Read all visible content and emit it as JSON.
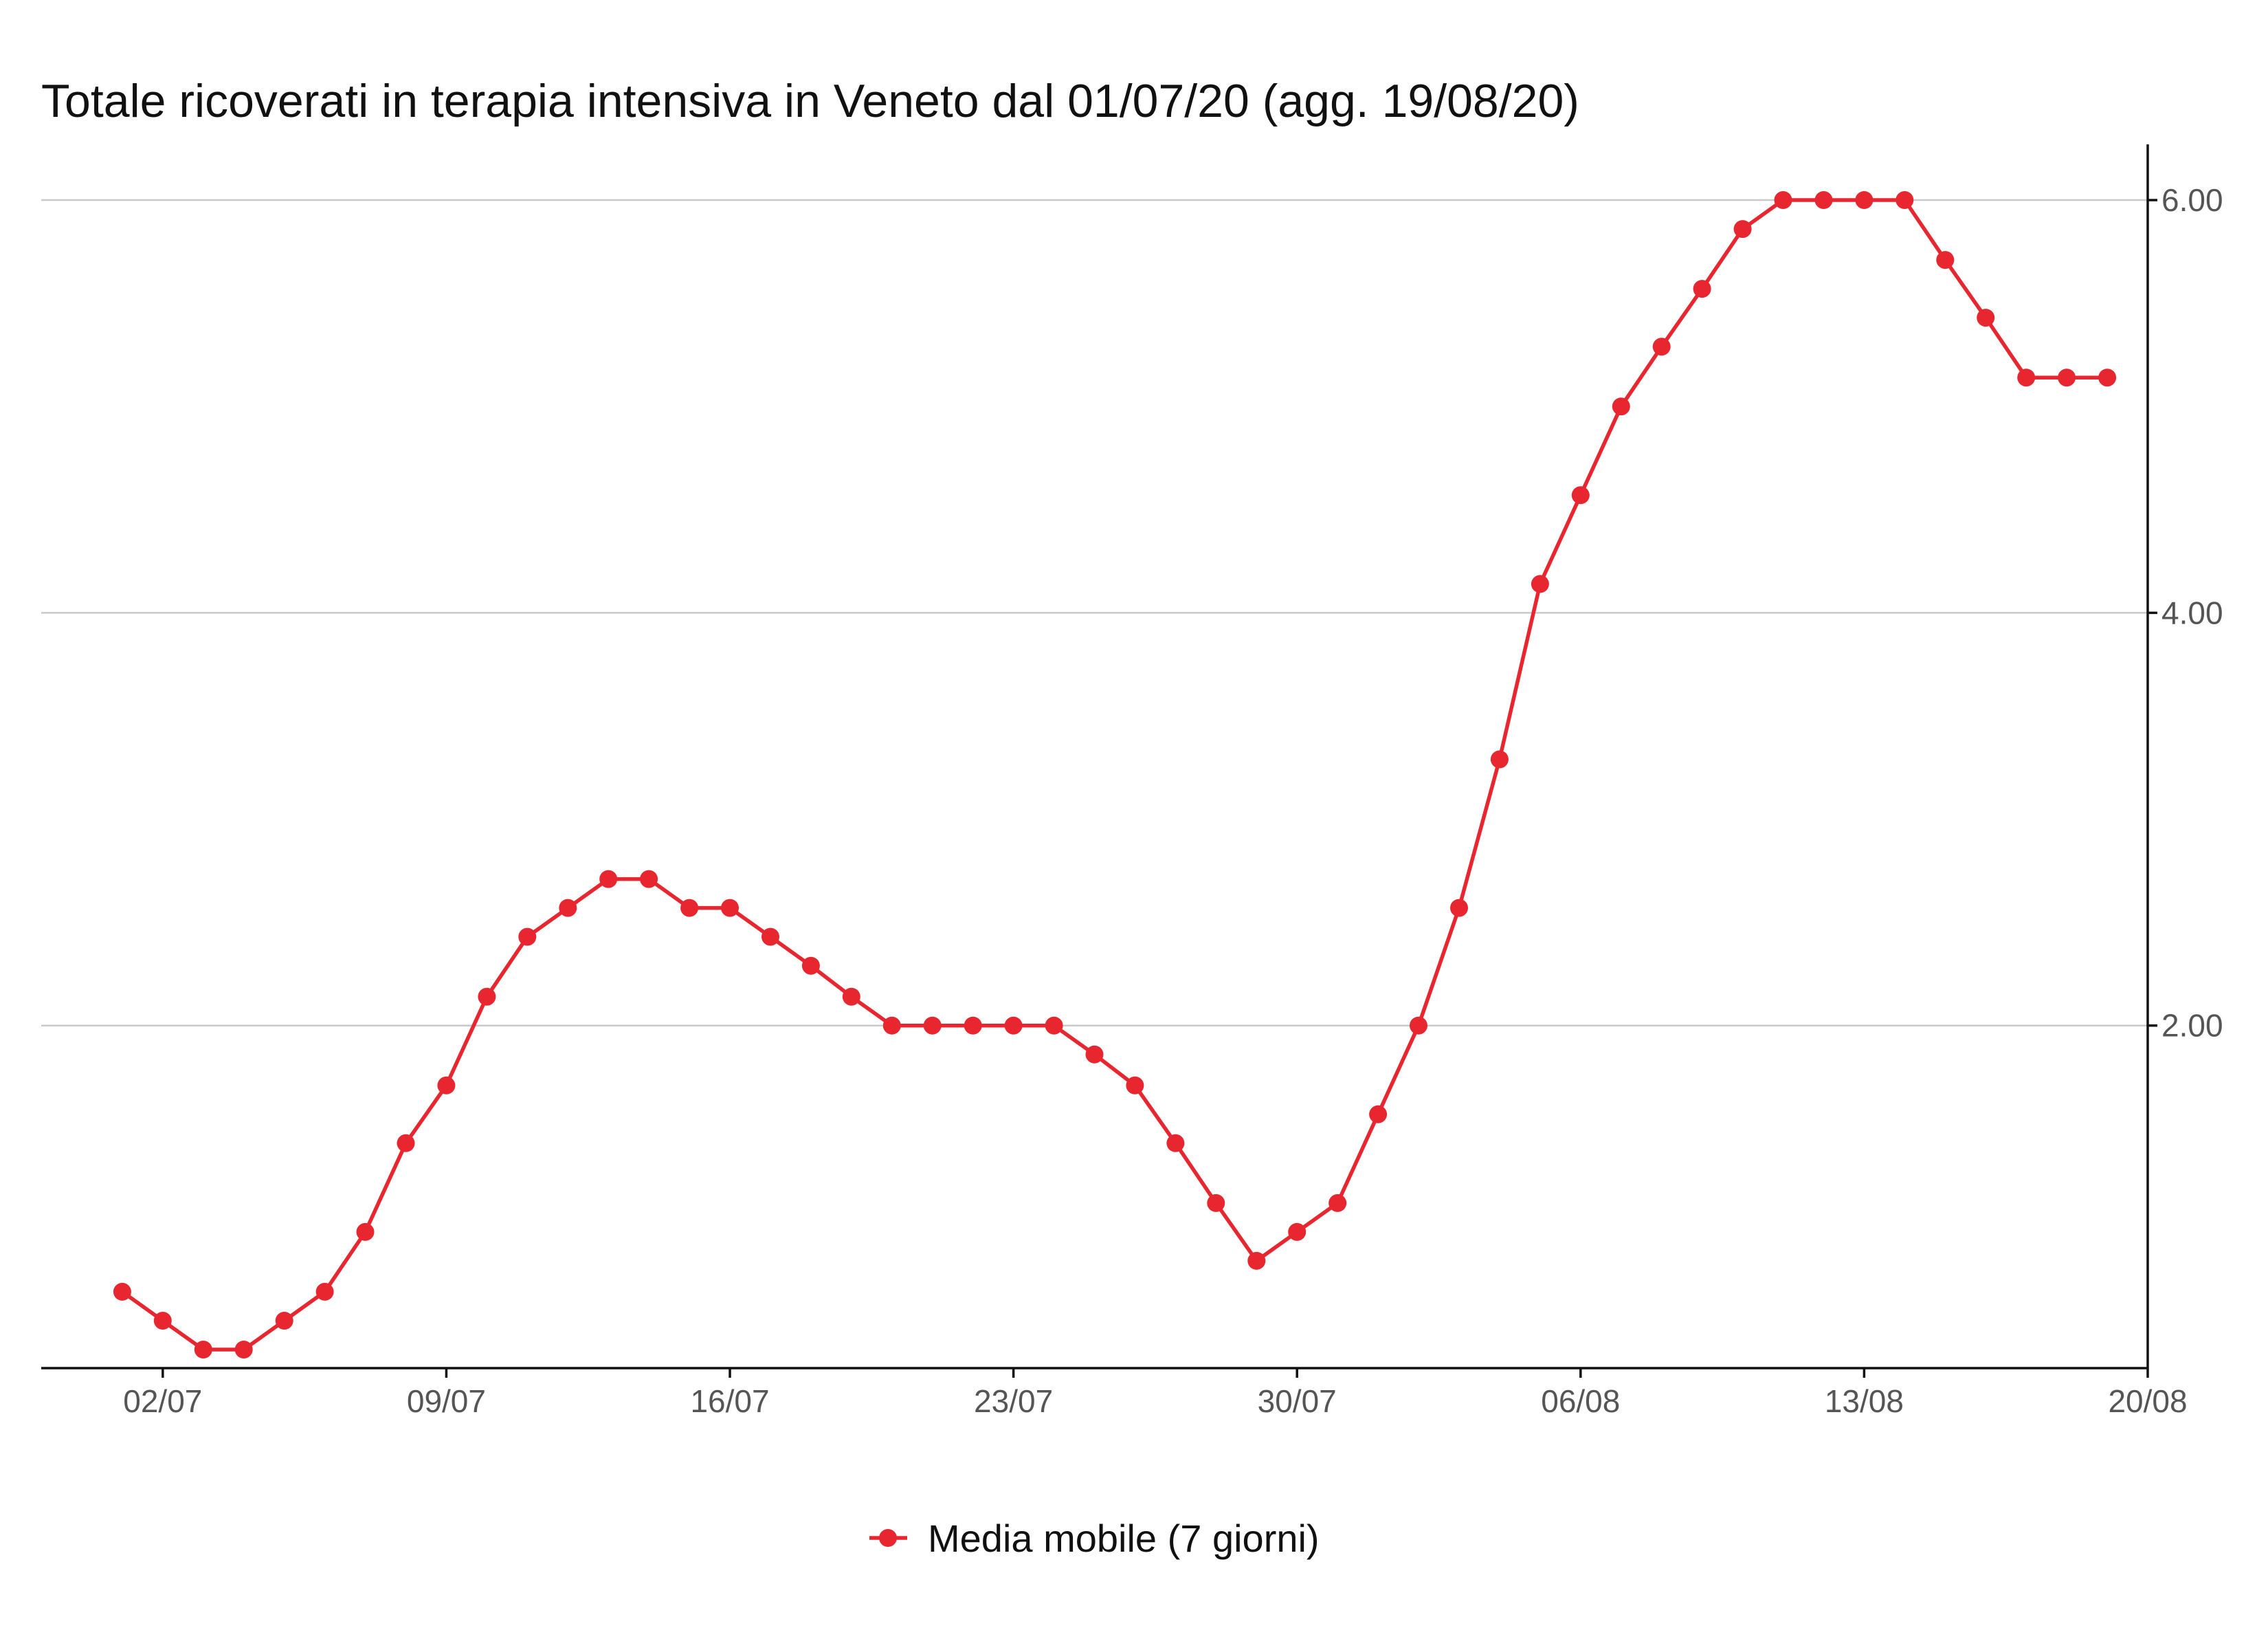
{
  "chart_data": {
    "type": "line",
    "title": "Totale ricoverati in terapia intensiva in Veneto dal 01/07/20 (agg. 19/08/20)",
    "xlabel": "",
    "ylabel": "",
    "x_ticks": [
      "02/07",
      "09/07",
      "16/07",
      "23/07",
      "30/07",
      "06/08",
      "13/08",
      "20/08"
    ],
    "y_ticks": [
      "2.00",
      "4.00",
      "6.00"
    ],
    "y_tick_values": [
      2,
      4,
      6
    ],
    "ylim": [
      0.34,
      6.27
    ],
    "xlim": [
      "2020-06-29",
      "2020-08-20"
    ],
    "y_axis_position": "right",
    "grid": "horizontal",
    "legend_position": "bottom",
    "line_color": "#e8262f",
    "series": [
      {
        "name": "Media mobile (7 giorni)",
        "x": [
          "2020-07-01",
          "2020-07-02",
          "2020-07-03",
          "2020-07-04",
          "2020-07-05",
          "2020-07-06",
          "2020-07-07",
          "2020-07-08",
          "2020-07-09",
          "2020-07-10",
          "2020-07-11",
          "2020-07-12",
          "2020-07-13",
          "2020-07-14",
          "2020-07-15",
          "2020-07-16",
          "2020-07-17",
          "2020-07-18",
          "2020-07-19",
          "2020-07-20",
          "2020-07-21",
          "2020-07-22",
          "2020-07-23",
          "2020-07-24",
          "2020-07-25",
          "2020-07-26",
          "2020-07-27",
          "2020-07-28",
          "2020-07-29",
          "2020-07-30",
          "2020-07-31",
          "2020-08-01",
          "2020-08-02",
          "2020-08-03",
          "2020-08-04",
          "2020-08-05",
          "2020-08-06",
          "2020-08-07",
          "2020-08-08",
          "2020-08-09",
          "2020-08-10",
          "2020-08-11",
          "2020-08-12",
          "2020-08-13",
          "2020-08-14",
          "2020-08-15",
          "2020-08-16",
          "2020-08-17",
          "2020-08-18",
          "2020-08-19"
        ],
        "values": [
          0.71,
          0.57,
          0.43,
          0.43,
          0.57,
          0.71,
          1.0,
          1.43,
          1.71,
          2.14,
          2.43,
          2.57,
          2.71,
          2.71,
          2.57,
          2.57,
          2.43,
          2.29,
          2.14,
          2.0,
          2.0,
          2.0,
          2.0,
          2.0,
          1.86,
          1.71,
          1.43,
          1.14,
          0.86,
          1.0,
          1.14,
          1.57,
          2.0,
          2.57,
          3.29,
          4.14,
          4.57,
          5.0,
          5.29,
          5.57,
          5.86,
          6.0,
          6.0,
          6.0,
          6.0,
          5.71,
          5.43,
          5.14,
          5.14,
          5.14
        ]
      }
    ]
  }
}
